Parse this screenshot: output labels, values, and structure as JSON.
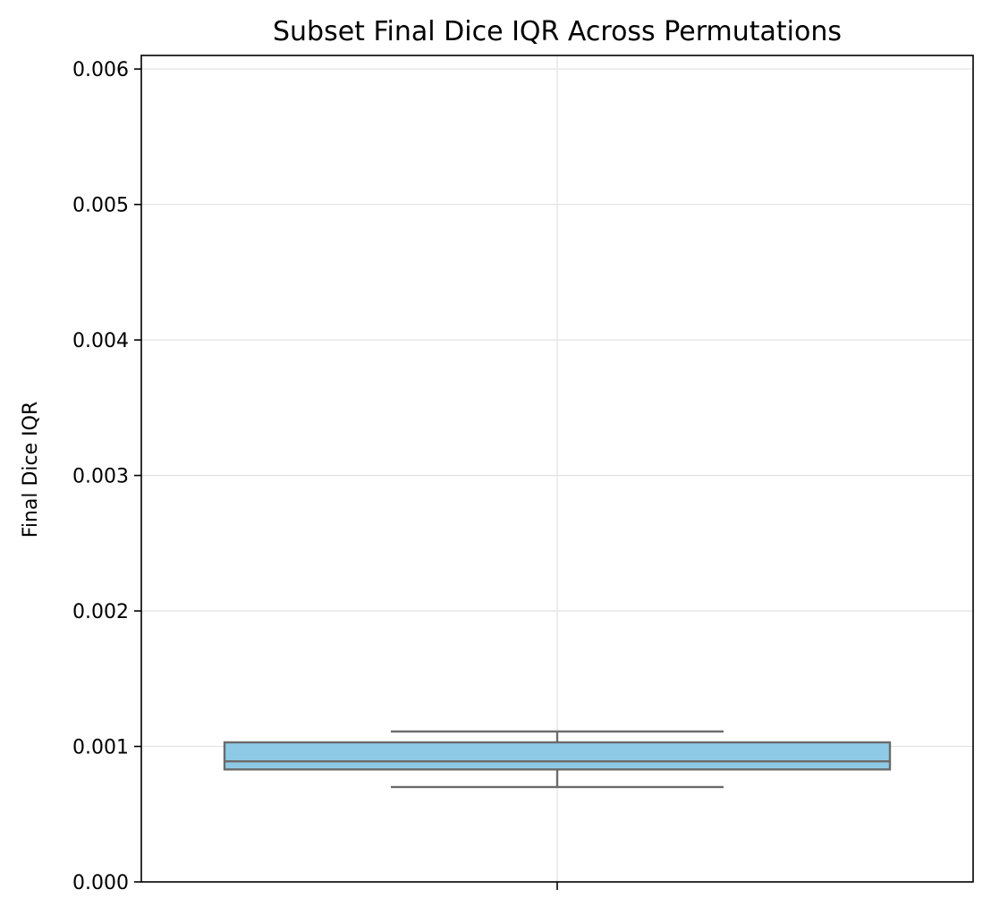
{
  "chart_data": {
    "type": "box",
    "title": "Subset Final Dice IQR Across Permutations",
    "xlabel": "",
    "ylabel": "Final Dice IQR",
    "ylim": [
      0,
      0.0061
    ],
    "yticks": [
      "0.000",
      "0.001",
      "0.002",
      "0.003",
      "0.004",
      "0.005",
      "0.006"
    ],
    "grid": true,
    "box": {
      "whisker_low": 0.0007,
      "q1": 0.00083,
      "median": 0.00089,
      "q3": 0.00103,
      "whisker_high": 0.00111
    },
    "colors": {
      "box_fill": "#8ecae6",
      "box_edge": "#6b6b6b",
      "grid": "#e3e3e3"
    }
  }
}
